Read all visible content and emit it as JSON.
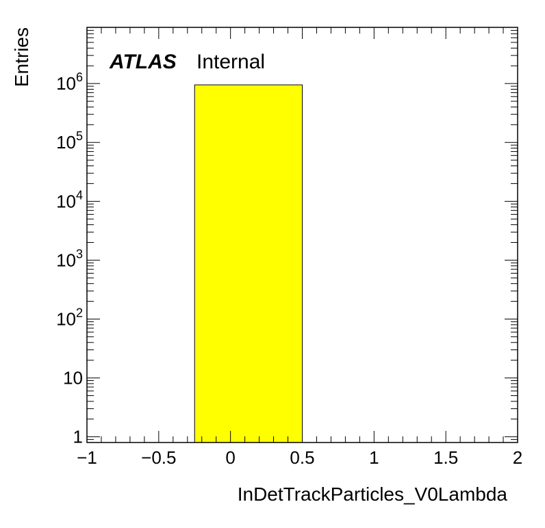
{
  "chart_data": {
    "type": "bar",
    "xlabel": "InDetTrackParticles_V0Lambda",
    "ylabel": "Entries",
    "xlim": [
      -1,
      2
    ],
    "ylim": [
      0.8,
      9000000
    ],
    "yscale": "log",
    "bins": [
      {
        "x_low": -0.25,
        "x_high": 0.5,
        "value": 950000
      }
    ],
    "bar_color": "#ffff00",
    "x_ticks": [
      {
        "value": -1,
        "label": "−1"
      },
      {
        "value": -0.5,
        "label": "−0.5"
      },
      {
        "value": 0,
        "label": "0"
      },
      {
        "value": 0.5,
        "label": "0.5"
      },
      {
        "value": 1,
        "label": "1"
      },
      {
        "value": 1.5,
        "label": "1.5"
      },
      {
        "value": 2,
        "label": "2"
      }
    ],
    "y_ticks": [
      {
        "value": 1,
        "base": "1",
        "exp": ""
      },
      {
        "value": 10,
        "base": "10",
        "exp": ""
      },
      {
        "value": 100,
        "base": "10",
        "exp": "2"
      },
      {
        "value": 1000,
        "base": "10",
        "exp": "3"
      },
      {
        "value": 10000,
        "base": "10",
        "exp": "4"
      },
      {
        "value": 100000,
        "base": "10",
        "exp": "5"
      },
      {
        "value": 1000000,
        "base": "10",
        "exp": "6"
      }
    ],
    "annotation": {
      "bold": "ATLAS",
      "normal": "Internal"
    },
    "grid": false,
    "legend": "none"
  }
}
